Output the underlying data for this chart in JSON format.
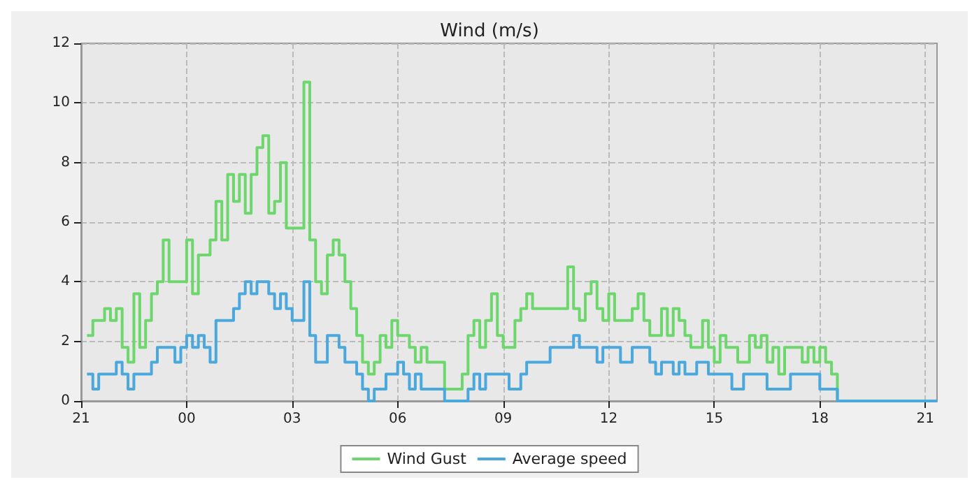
{
  "chart_data": {
    "type": "step",
    "title": "Wind (m/s)",
    "ylim": [
      0,
      12
    ],
    "yticks": [
      0,
      2,
      4,
      6,
      8,
      10,
      12
    ],
    "categories": [
      "21",
      null,
      null,
      null,
      null,
      null,
      null,
      null,
      null,
      null,
      null,
      null,
      null,
      null,
      null,
      null,
      null,
      null,
      "00",
      null,
      null,
      null,
      null,
      null,
      null,
      null,
      null,
      null,
      null,
      null,
      null,
      null,
      null,
      null,
      null,
      null,
      "03",
      null,
      null,
      null,
      null,
      null,
      null,
      null,
      null,
      null,
      null,
      null,
      null,
      null,
      null,
      null,
      null,
      null,
      "06",
      null,
      null,
      null,
      null,
      null,
      null,
      null,
      null,
      null,
      null,
      null,
      null,
      null,
      null,
      null,
      null,
      null,
      "09",
      null,
      null,
      null,
      null,
      null,
      null,
      null,
      null,
      null,
      null,
      null,
      null,
      null,
      null,
      null,
      null,
      null,
      "12",
      null,
      null,
      null,
      null,
      null,
      null,
      null,
      null,
      null,
      null,
      null,
      null,
      null,
      null,
      null,
      null,
      null,
      "15",
      null,
      null,
      null,
      null,
      null,
      null,
      null,
      null,
      null,
      null,
      null,
      null,
      null,
      null,
      null,
      null,
      null,
      "18",
      null,
      null,
      null,
      null,
      null,
      null,
      null,
      null,
      null,
      null,
      null,
      null,
      null,
      null,
      null,
      null,
      null,
      "21",
      null,
      null
    ],
    "grid": true,
    "legend": "bottom",
    "line_style": "solid",
    "marker": "none",
    "series": [
      {
        "name": "Wind Gust",
        "color": "#6dd66d",
        "values": [
          null,
          2.2,
          2.7,
          2.7,
          3.1,
          2.7,
          3.1,
          1.8,
          1.3,
          3.6,
          1.8,
          2.7,
          3.6,
          4.0,
          5.4,
          4.0,
          4.0,
          4.0,
          5.4,
          3.6,
          4.9,
          4.9,
          5.4,
          6.7,
          5.4,
          7.6,
          6.7,
          7.6,
          6.3,
          7.6,
          8.5,
          8.9,
          6.3,
          6.7,
          8.0,
          5.8,
          5.8,
          5.8,
          10.7,
          5.4,
          4.0,
          3.6,
          4.9,
          5.4,
          4.9,
          4.0,
          3.1,
          2.2,
          1.3,
          0.9,
          1.3,
          2.2,
          1.8,
          2.7,
          2.2,
          2.2,
          1.8,
          1.3,
          1.8,
          1.3,
          1.3,
          1.3,
          0.4,
          0.4,
          0.4,
          0.9,
          2.2,
          2.7,
          1.8,
          2.7,
          3.6,
          2.2,
          1.8,
          1.8,
          2.7,
          3.1,
          3.6,
          3.1,
          3.1,
          3.1,
          3.1,
          3.1,
          3.1,
          4.5,
          3.1,
          2.7,
          3.6,
          4.0,
          3.1,
          2.7,
          3.6,
          2.7,
          2.7,
          2.7,
          3.1,
          3.6,
          2.7,
          2.2,
          2.2,
          3.1,
          2.2,
          3.1,
          2.7,
          2.2,
          1.8,
          1.8,
          2.7,
          1.8,
          1.3,
          2.2,
          1.8,
          1.8,
          1.3,
          1.3,
          2.2,
          1.8,
          2.2,
          1.3,
          1.8,
          0.9,
          1.8,
          1.8,
          1.8,
          1.3,
          1.8,
          1.3,
          1.8,
          1.3,
          0.9,
          0,
          null,
          null,
          null,
          null,
          null,
          null,
          null,
          null,
          null,
          null,
          null,
          null,
          null,
          null,
          null,
          null,
          null
        ]
      },
      {
        "name": "Average speed",
        "color": "#4aa8dc",
        "values": [
          null,
          0.9,
          0.4,
          0.9,
          0.9,
          0.9,
          1.3,
          0.9,
          0.4,
          0.9,
          0.9,
          0.9,
          1.3,
          1.8,
          1.8,
          1.8,
          1.3,
          1.8,
          2.2,
          1.8,
          2.2,
          1.8,
          1.3,
          2.7,
          2.7,
          2.7,
          3.1,
          3.6,
          4.0,
          3.6,
          4.0,
          4.0,
          3.6,
          3.1,
          3.6,
          3.1,
          2.7,
          2.7,
          4.0,
          2.2,
          1.3,
          1.3,
          2.2,
          2.2,
          1.8,
          1.3,
          1.3,
          0.9,
          0.4,
          0,
          0.4,
          0.4,
          0.9,
          0.9,
          1.3,
          0.9,
          0.4,
          0.9,
          0.4,
          0.4,
          0.4,
          0.4,
          0,
          0,
          0,
          0,
          0.4,
          0.9,
          0.4,
          0.9,
          0.9,
          0.9,
          0.9,
          0.4,
          0.4,
          0.9,
          1.3,
          1.3,
          1.3,
          1.3,
          1.8,
          1.8,
          1.8,
          1.8,
          2.2,
          1.8,
          1.8,
          1.8,
          1.3,
          1.8,
          1.8,
          1.8,
          1.3,
          1.3,
          1.8,
          1.8,
          1.8,
          1.3,
          0.9,
          1.3,
          1.3,
          0.9,
          1.3,
          0.9,
          0.9,
          1.3,
          1.3,
          0.9,
          0.9,
          0.9,
          0.9,
          0.4,
          0.4,
          0.9,
          0.9,
          0.9,
          0.9,
          0.4,
          0.4,
          0.4,
          0.4,
          0.9,
          0.9,
          0.9,
          0.9,
          0.9,
          0.4,
          0.4,
          0.4,
          0,
          0,
          0,
          0,
          0,
          0,
          0,
          0,
          0,
          0,
          0,
          0,
          0,
          0,
          0,
          0,
          0,
          0
        ]
      }
    ]
  }
}
